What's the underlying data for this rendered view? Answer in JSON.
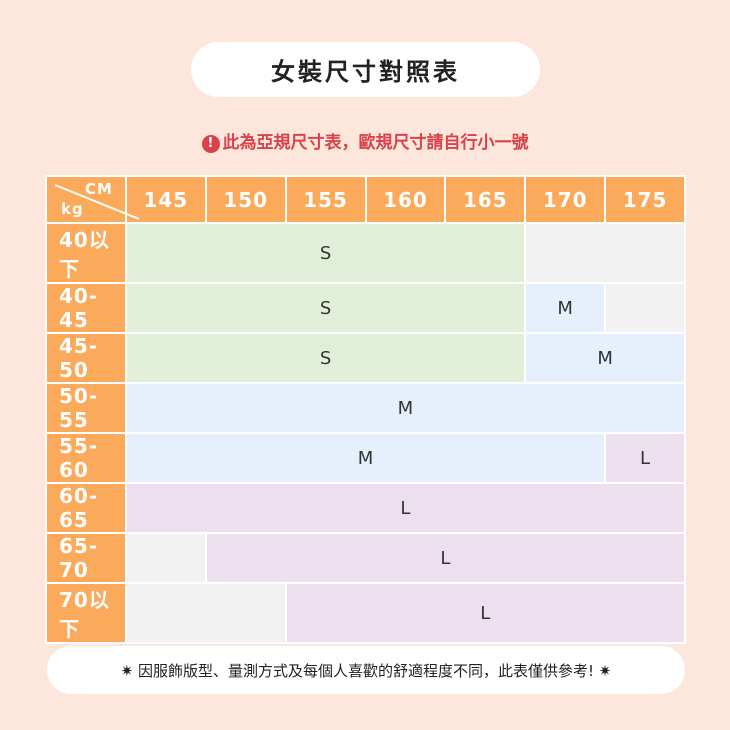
{
  "title": "女裝尺寸對照表",
  "warning": {
    "icon": "exclamation-icon",
    "text": "此為亞規尺寸表，歐規尺寸請自行小一號"
  },
  "table": {
    "corner_top": "CM",
    "corner_bottom": "kg",
    "heights": [
      "145",
      "150",
      "155",
      "160",
      "165",
      "170",
      "175"
    ],
    "rows": [
      {
        "weight": "40以下",
        "cells": [
          {
            "size": "S",
            "span": 5
          },
          {
            "size": "",
            "span": 2
          }
        ]
      },
      {
        "weight": "40-45",
        "cells": [
          {
            "size": "S",
            "span": 5
          },
          {
            "size": "M",
            "span": 1
          },
          {
            "size": "",
            "span": 1
          }
        ]
      },
      {
        "weight": "45-50",
        "cells": [
          {
            "size": "S",
            "span": 5
          },
          {
            "size": "M",
            "span": 2
          }
        ]
      },
      {
        "weight": "50-55",
        "cells": [
          {
            "size": "M",
            "span": 7
          }
        ]
      },
      {
        "weight": "55-60",
        "cells": [
          {
            "size": "M",
            "span": 6
          },
          {
            "size": "L",
            "span": 1
          }
        ]
      },
      {
        "weight": "60-65",
        "cells": [
          {
            "size": "L",
            "span": 7
          }
        ]
      },
      {
        "weight": "65-70",
        "cells": [
          {
            "size": "",
            "span": 1
          },
          {
            "size": "L",
            "span": 6
          }
        ]
      },
      {
        "weight": "70以下",
        "cells": [
          {
            "size": "",
            "span": 2
          },
          {
            "size": "L",
            "span": 5
          }
        ]
      }
    ]
  },
  "note": "✷ 因服飾版型、量測方式及每個人喜歡的舒適程度不同，此表僅供參考! ✷",
  "colors": {
    "background": "#fde7dc",
    "header": "#fbaa5b",
    "S": "#e2efd8",
    "M": "#e5f0fc",
    "L": "#ece0ef",
    "none": "#f2f2f2",
    "warning": "#d9424a"
  }
}
